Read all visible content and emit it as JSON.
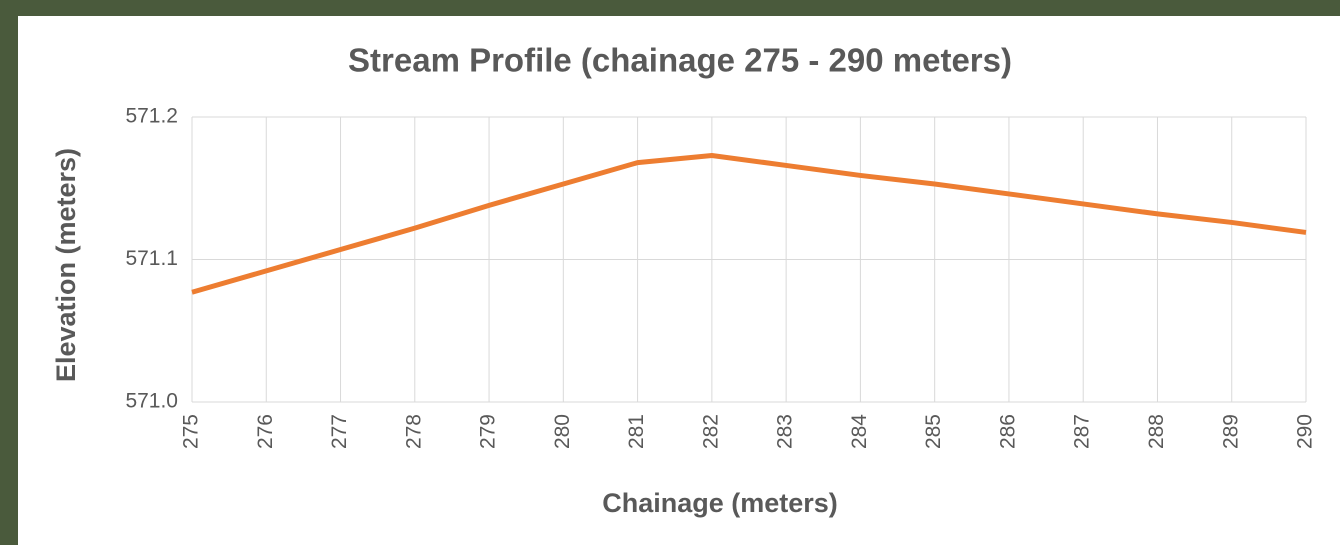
{
  "chart_data": {
    "type": "line",
    "title": "Stream Profile (chainage 275 - 290 meters)",
    "x_label": "Chainage (meters)",
    "y_label": "Elevation (meters)",
    "x": [
      275,
      276,
      277,
      278,
      279,
      280,
      281,
      282,
      283,
      284,
      285,
      286,
      287,
      288,
      289,
      290
    ],
    "values": [
      571.077,
      571.092,
      571.107,
      571.122,
      571.138,
      571.153,
      571.168,
      571.173,
      571.166,
      571.159,
      571.153,
      571.146,
      571.139,
      571.132,
      571.126,
      571.119
    ],
    "color": "#ed7d31",
    "xlim": [
      275,
      290
    ],
    "xticks": [
      275,
      276,
      277,
      278,
      279,
      280,
      281,
      282,
      283,
      284,
      285,
      286,
      287,
      288,
      289,
      290
    ],
    "ylim": [
      571.0,
      571.2
    ],
    "yticks": [
      {
        "value": 571.0,
        "label": "571.0"
      },
      571.1,
      571.2
    ],
    "grid": true
  }
}
